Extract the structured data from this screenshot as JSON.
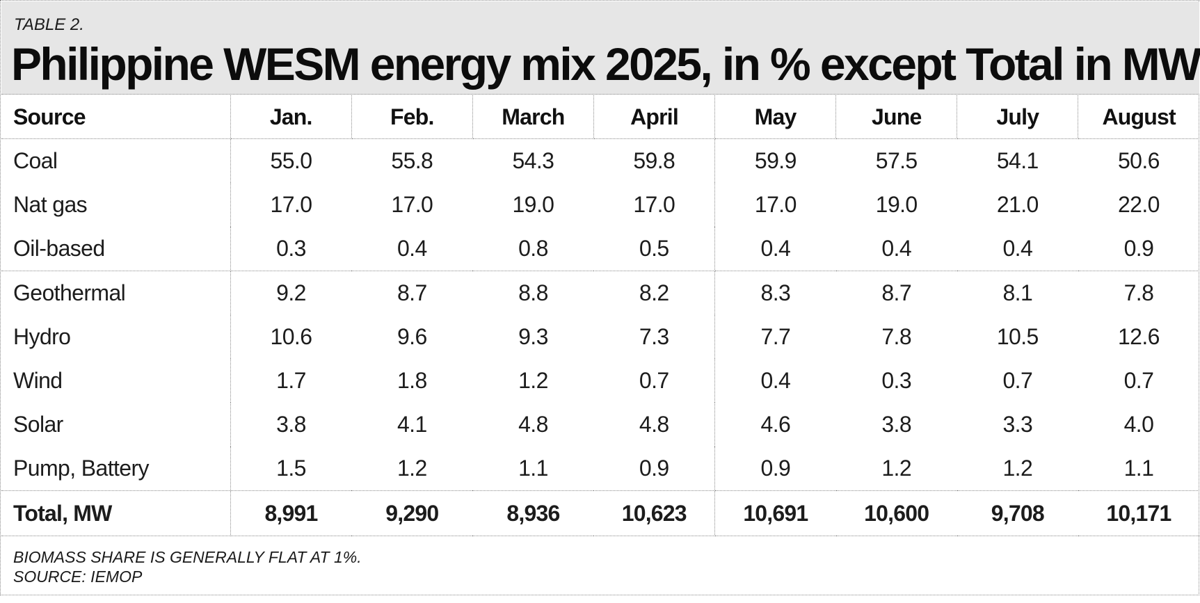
{
  "header": {
    "label": "TABLE 2.",
    "title": "Philippine WESM energy mix 2025, in % except Total in MW"
  },
  "table": {
    "columns": [
      "Source",
      "Jan.",
      "Feb.",
      "March",
      "April",
      "May",
      "June",
      "July",
      "August"
    ],
    "rows": [
      {
        "source": "Coal",
        "values": [
          "55.0",
          "55.8",
          "54.3",
          "59.8",
          "59.9",
          "57.5",
          "54.1",
          "50.6"
        ]
      },
      {
        "source": "Nat gas",
        "values": [
          "17.0",
          "17.0",
          "19.0",
          "17.0",
          "17.0",
          "19.0",
          "21.0",
          "22.0"
        ]
      },
      {
        "source": "Oil-based",
        "values": [
          "0.3",
          "0.4",
          "0.8",
          "0.5",
          "0.4",
          "0.4",
          "0.4",
          "0.9"
        ]
      },
      {
        "source": "Geothermal",
        "values": [
          "9.2",
          "8.7",
          "8.8",
          "8.2",
          "8.3",
          "8.7",
          "8.1",
          "7.8"
        ]
      },
      {
        "source": "Hydro",
        "values": [
          "10.6",
          "9.6",
          "9.3",
          "7.3",
          "7.7",
          "7.8",
          "10.5",
          "12.6"
        ]
      },
      {
        "source": "Wind",
        "values": [
          "1.7",
          "1.8",
          "1.2",
          "0.7",
          "0.4",
          "0.3",
          "0.7",
          "0.7"
        ]
      },
      {
        "source": "Solar",
        "values": [
          "3.8",
          "4.1",
          "4.8",
          "4.8",
          "4.6",
          "3.8",
          "3.3",
          "4.0"
        ]
      },
      {
        "source": "Pump, Battery",
        "values": [
          "1.5",
          "1.2",
          "1.1",
          "0.9",
          "0.9",
          "1.2",
          "1.2",
          "1.1"
        ]
      }
    ],
    "total": {
      "source": "Total, MW",
      "values": [
        "8,991",
        "9,290",
        "8,936",
        "10,623",
        "10,691",
        "10,600",
        "9,708",
        "10,171"
      ]
    }
  },
  "footnotes": {
    "note": "BIOMASS SHARE IS GENERALLY FLAT AT 1%.",
    "source": "SOURCE: IEMOP"
  }
}
